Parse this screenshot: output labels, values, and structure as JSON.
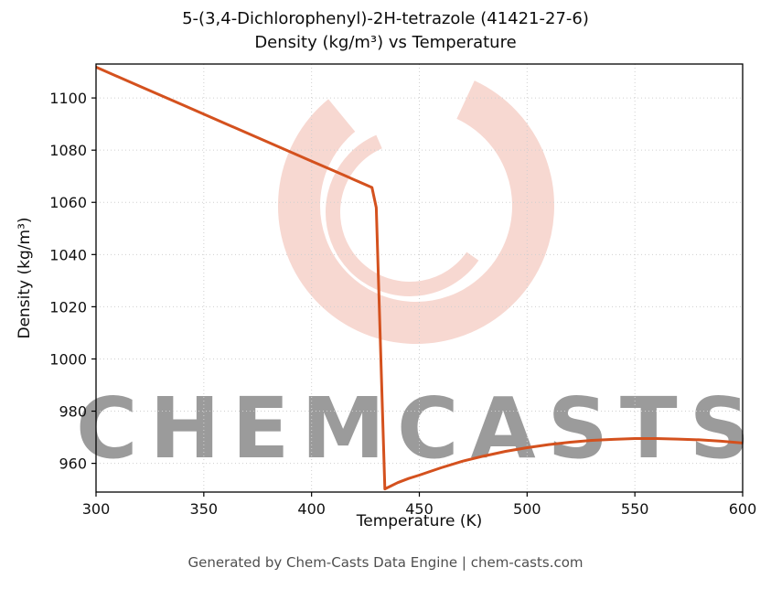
{
  "footer": {
    "text": "Generated by Chem-Casts Data Engine | chem-casts.com"
  },
  "watermark": {
    "text": "CHEMCASTS",
    "color": "#eda392",
    "opacity": 0.42
  },
  "chart_data": {
    "type": "line",
    "title": "5-(3,4-Dichlorophenyl)-2H-tetrazole (41421-27-6)",
    "subtitle": "Density (kg/m³) vs Temperature",
    "xlabel": "Temperature (K)",
    "ylabel": "Density (kg/m³)",
    "xlim": [
      300,
      600
    ],
    "ylim": [
      949,
      1113
    ],
    "xticks": [
      300,
      350,
      400,
      450,
      500,
      550,
      600
    ],
    "yticks": [
      960,
      980,
      1000,
      1020,
      1040,
      1060,
      1080,
      1100
    ],
    "grid": true,
    "grid_color": "#cfcfcf",
    "line_color": "#d4511e",
    "series": [
      {
        "name": "Density",
        "points": [
          [
            300,
            1111.8
          ],
          [
            320,
            1104.6
          ],
          [
            340,
            1097.4
          ],
          [
            360,
            1090.2
          ],
          [
            380,
            1083.0
          ],
          [
            400,
            1075.8
          ],
          [
            410,
            1072.2
          ],
          [
            420,
            1068.6
          ],
          [
            428,
            1065.7
          ],
          [
            430,
            1058.0
          ],
          [
            434,
            950.2
          ],
          [
            440,
            952.6
          ],
          [
            445,
            954.2
          ],
          [
            450,
            955.5
          ],
          [
            460,
            958.3
          ],
          [
            470,
            960.8
          ],
          [
            480,
            962.8
          ],
          [
            490,
            964.6
          ],
          [
            500,
            966.0
          ],
          [
            510,
            967.2
          ],
          [
            520,
            968.1
          ],
          [
            530,
            968.8
          ],
          [
            540,
            969.2
          ],
          [
            550,
            969.5
          ],
          [
            560,
            969.5
          ],
          [
            570,
            969.3
          ],
          [
            580,
            969.0
          ],
          [
            590,
            968.5
          ],
          [
            600,
            967.8
          ]
        ]
      }
    ]
  }
}
